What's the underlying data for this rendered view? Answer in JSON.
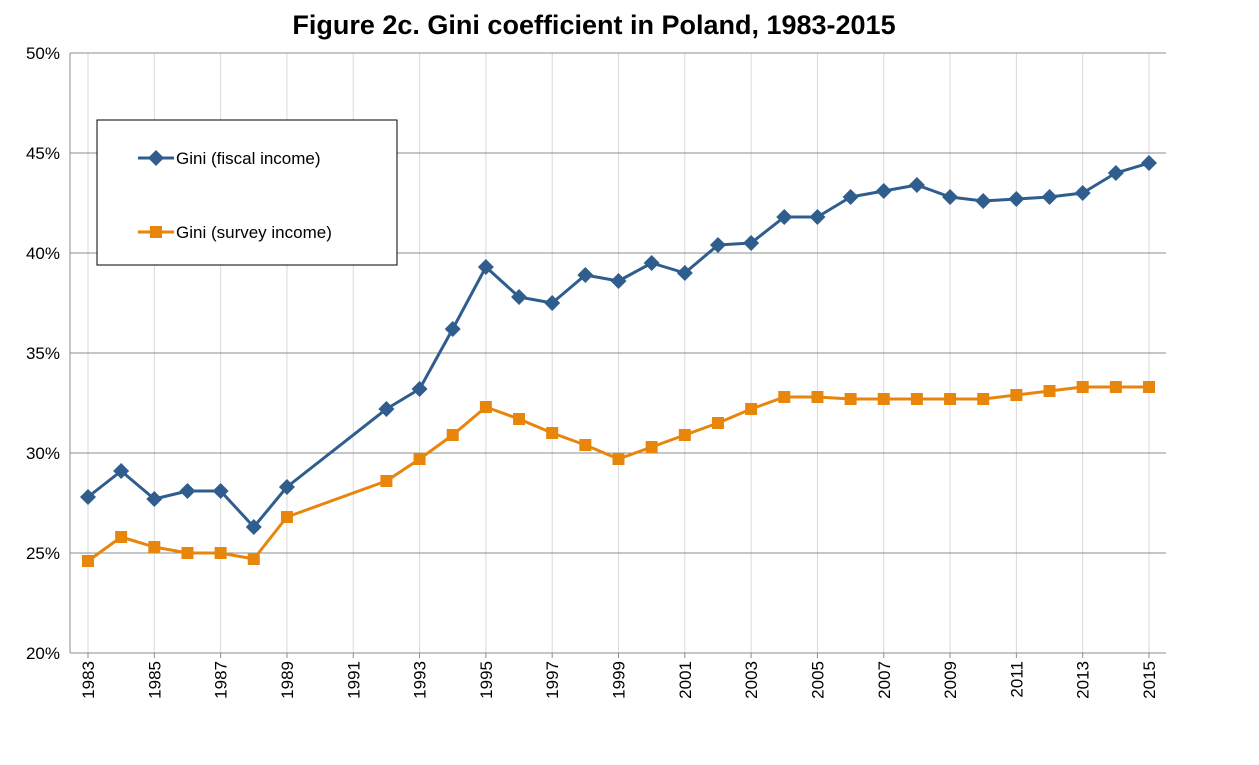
{
  "chart_data": {
    "type": "line",
    "title": "Figure 2c.  Gini coefficient in Poland, 1983-2015",
    "xlabel": "",
    "ylabel": "",
    "ylim": [
      0.2,
      0.5
    ],
    "xlim": [
      1983,
      2015
    ],
    "y_ticks": [
      {
        "value": 0.2,
        "label": "20%"
      },
      {
        "value": 0.25,
        "label": "25%"
      },
      {
        "value": 0.3,
        "label": "30%"
      },
      {
        "value": 0.35,
        "label": "35%"
      },
      {
        "value": 0.4,
        "label": "40%"
      },
      {
        "value": 0.45,
        "label": "45%"
      },
      {
        "value": 0.5,
        "label": "50%"
      }
    ],
    "x_ticks": [
      "1983",
      "1985",
      "1987",
      "1989",
      "1991",
      "1993",
      "1995",
      "1997",
      "1999",
      "2001",
      "2003",
      "2005",
      "2007",
      "2009",
      "2011",
      "2013",
      "2015"
    ],
    "grid": true,
    "legend_position": "top-left",
    "series": [
      {
        "name": "Gini (fiscal income)",
        "color": "#2E5D8E",
        "marker": "diamond",
        "points": [
          [
            1983,
            0.278
          ],
          [
            1984,
            0.291
          ],
          [
            1985,
            0.277
          ],
          [
            1986,
            0.281
          ],
          [
            1987,
            0.281
          ],
          [
            1988,
            0.263
          ],
          [
            1989,
            0.283
          ],
          [
            1992,
            0.322
          ],
          [
            1993,
            0.332
          ],
          [
            1994,
            0.362
          ],
          [
            1995,
            0.393
          ],
          [
            1996,
            0.378
          ],
          [
            1997,
            0.375
          ],
          [
            1998,
            0.389
          ],
          [
            1999,
            0.386
          ],
          [
            2000,
            0.395
          ],
          [
            2001,
            0.39
          ],
          [
            2002,
            0.404
          ],
          [
            2003,
            0.405
          ],
          [
            2004,
            0.418
          ],
          [
            2005,
            0.418
          ],
          [
            2006,
            0.428
          ],
          [
            2007,
            0.431
          ],
          [
            2008,
            0.434
          ],
          [
            2009,
            0.428
          ],
          [
            2010,
            0.426
          ],
          [
            2011,
            0.427
          ],
          [
            2012,
            0.428
          ],
          [
            2013,
            0.43
          ],
          [
            2014,
            0.44
          ],
          [
            2015,
            0.445
          ]
        ]
      },
      {
        "name": "Gini (survey income)",
        "color": "#E8860C",
        "marker": "square",
        "points": [
          [
            1983,
            0.246
          ],
          [
            1984,
            0.258
          ],
          [
            1985,
            0.253
          ],
          [
            1986,
            0.25
          ],
          [
            1987,
            0.25
          ],
          [
            1988,
            0.247
          ],
          [
            1989,
            0.268
          ],
          [
            1992,
            0.286
          ],
          [
            1993,
            0.297
          ],
          [
            1994,
            0.309
          ],
          [
            1995,
            0.323
          ],
          [
            1996,
            0.317
          ],
          [
            1997,
            0.31
          ],
          [
            1998,
            0.304
          ],
          [
            1999,
            0.297
          ],
          [
            2000,
            0.303
          ],
          [
            2001,
            0.309
          ],
          [
            2002,
            0.315
          ],
          [
            2003,
            0.322
          ],
          [
            2004,
            0.328
          ],
          [
            2005,
            0.328
          ],
          [
            2006,
            0.327
          ],
          [
            2007,
            0.327
          ],
          [
            2008,
            0.327
          ],
          [
            2009,
            0.327
          ],
          [
            2010,
            0.327
          ],
          [
            2011,
            0.329
          ],
          [
            2012,
            0.331
          ],
          [
            2013,
            0.333
          ],
          [
            2014,
            0.333
          ],
          [
            2015,
            0.333
          ]
        ]
      }
    ]
  }
}
